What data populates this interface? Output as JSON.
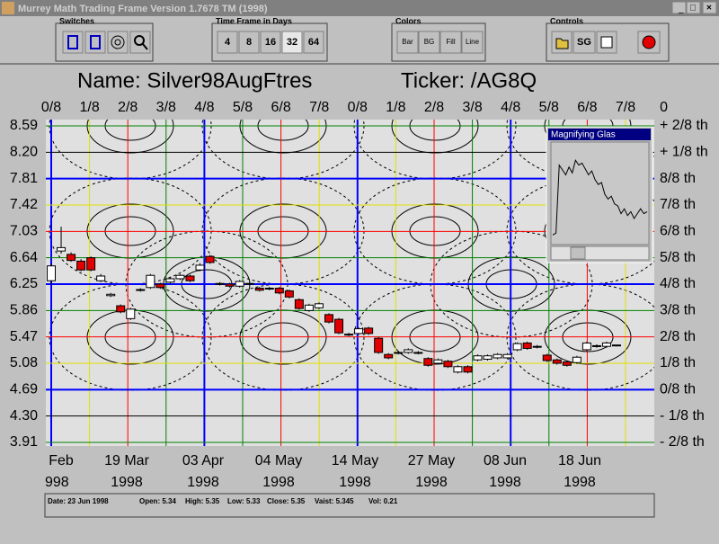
{
  "window": {
    "title": "Murrey Math Trading Frame Version 1.7678  TM (1998)"
  },
  "toolbar": {
    "switches": {
      "label": "Switches"
    },
    "time_frame": {
      "label": "Time Frame in Days",
      "buttons": [
        "4",
        "8",
        "16",
        "32",
        "64"
      ]
    },
    "colors": {
      "label": "Colors",
      "buttons": [
        "Bar",
        "BG",
        "Fill",
        "Line"
      ]
    },
    "controls": {
      "label": "Controls",
      "buttons": [
        "SG"
      ]
    }
  },
  "chart_data": {
    "type": "candlestick",
    "title": "Name: Silver98AugFtres",
    "subtitle": "Ticker: /AG8Q",
    "ylim": [
      3.91,
      8.59
    ],
    "yticks": [
      8.59,
      {
        "value": 8.2,
        "label": "8.20"
      },
      7.81,
      7.42,
      7.03,
      6.64,
      6.25,
      5.86,
      5.47,
      5.08,
      4.69,
      {
        "value": 4.3,
        "label": "4.30"
      },
      3.91
    ],
    "right_labels": [
      "+ 2/8 th",
      "+ 1/8 th",
      "8/8 th",
      "7/8 th",
      "6/8 th",
      "5/8 th",
      "4/8 th",
      "3/8 th",
      "2/8 th",
      "1/8 th",
      "0/8 th",
      "- 1/8 th",
      "- 2/8 th"
    ],
    "top_labels": [
      "0/8",
      "1/8",
      "2/8",
      "3/8",
      "4/8",
      "5/8",
      "6/8",
      "7/8",
      "0/8",
      "1/8",
      "2/8",
      "3/8",
      "4/8",
      "5/8",
      "6/8",
      "7/8",
      "0"
    ],
    "date_labels": [
      "Feb",
      "19 Mar",
      "03 Apr",
      "04 May",
      "14 May",
      "27 May",
      "08 Jun",
      "18 Jun"
    ],
    "year_labels": [
      "998",
      "1998",
      "1998",
      "1998",
      "1998",
      "1998",
      "1998",
      "1998"
    ],
    "up_color": "#ffffff",
    "down_color": "#e00000",
    "open": [
      6.3,
      6.74,
      6.69,
      6.59,
      6.64,
      6.3,
      6.08,
      5.93,
      5.74,
      6.16,
      6.2,
      6.25,
      6.28,
      6.33,
      6.37,
      6.46,
      6.66,
      6.25,
      6.25,
      6.22,
      6.25,
      6.19,
      6.18,
      6.19,
      6.15,
      6.02,
      5.86,
      5.9,
      5.8,
      5.73,
      5.5,
      5.52,
      5.6,
      5.45,
      5.21,
      5.23,
      5.24,
      5.23,
      5.15,
      5.08,
      5.11,
      4.95,
      5.03,
      5.13,
      5.14,
      5.16,
      5.16,
      5.28,
      5.38,
      5.32,
      5.2,
      5.13,
      5.1,
      5.09,
      5.28,
      5.33,
      5.33,
      5.34
    ],
    "high": [
      6.55,
      7.1,
      6.72,
      6.62,
      6.66,
      6.4,
      6.12,
      5.95,
      5.9,
      6.19,
      6.4,
      6.27,
      6.35,
      6.4,
      6.39,
      6.56,
      6.68,
      6.28,
      6.27,
      6.31,
      6.28,
      6.21,
      6.21,
      6.21,
      6.17,
      6.04,
      5.96,
      5.98,
      5.82,
      5.75,
      5.53,
      5.61,
      5.62,
      5.47,
      5.23,
      5.26,
      5.3,
      5.26,
      5.17,
      5.15,
      5.13,
      5.05,
      5.05,
      5.21,
      5.21,
      5.23,
      5.23,
      5.39,
      5.4,
      5.35,
      5.22,
      5.15,
      5.12,
      5.19,
      5.4,
      5.36,
      5.4,
      5.35
    ],
    "low": [
      6.25,
      6.7,
      6.58,
      6.44,
      6.44,
      6.28,
      6.06,
      5.82,
      5.72,
      6.14,
      6.18,
      6.18,
      6.26,
      6.31,
      6.28,
      6.44,
      6.55,
      6.23,
      6.2,
      6.2,
      6.23,
      6.14,
      6.16,
      6.1,
      6.04,
      5.87,
      5.84,
      5.88,
      5.67,
      5.51,
      5.48,
      5.5,
      5.5,
      5.22,
      5.14,
      5.21,
      5.22,
      5.21,
      5.03,
      5.06,
      5.01,
      4.93,
      4.93,
      5.11,
      5.12,
      5.14,
      5.14,
      5.26,
      5.28,
      5.3,
      5.1,
      5.06,
      5.03,
      5.07,
      5.26,
      5.31,
      5.31,
      5.33
    ],
    "close": [
      6.52,
      6.79,
      6.6,
      6.46,
      6.46,
      6.37,
      6.1,
      5.84,
      5.88,
      6.17,
      6.38,
      6.2,
      6.33,
      6.38,
      6.3,
      6.53,
      6.57,
      6.26,
      6.22,
      6.29,
      6.26,
      6.16,
      6.19,
      6.12,
      6.06,
      5.89,
      5.94,
      5.96,
      5.69,
      5.53,
      5.51,
      5.59,
      5.52,
      5.24,
      5.16,
      5.24,
      5.28,
      5.24,
      5.05,
      5.13,
      5.03,
      5.03,
      4.95,
      5.19,
      5.19,
      5.21,
      5.21,
      5.37,
      5.3,
      5.33,
      5.12,
      5.08,
      5.05,
      5.17,
      5.38,
      5.34,
      5.38,
      5.35
    ]
  },
  "magnifier": {
    "title": "Magnifying Glas",
    "values": [
      8,
      10,
      80,
      75,
      70,
      78,
      72,
      85,
      80,
      82,
      76,
      70,
      74,
      65,
      60,
      62,
      50,
      45,
      48,
      40,
      38,
      30,
      35,
      28,
      32,
      25,
      30,
      35,
      30,
      32
    ]
  },
  "status": {
    "date": "Date: 23 Jun 1998",
    "open": "Open: 5.34",
    "high": "High: 5.35",
    "low": "Low: 5.33",
    "close": "Close: 5.35",
    "vaist": "Vaist: 5.345",
    "vol": "Vol: 0.21"
  }
}
